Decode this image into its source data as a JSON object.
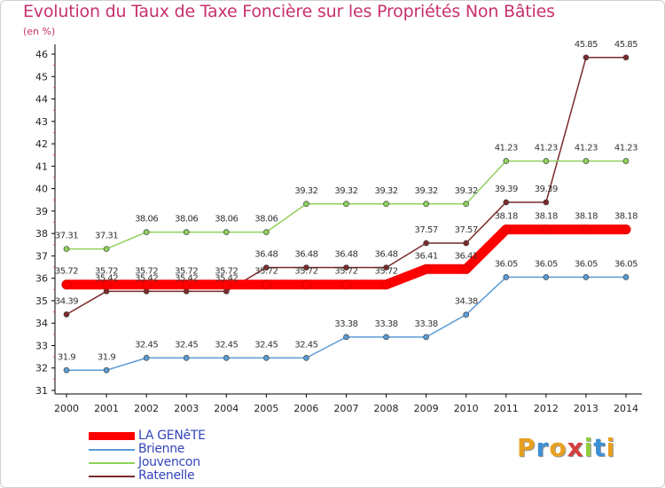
{
  "chart_data": {
    "type": "line",
    "title": "Evolution du Taux de Taxe Foncière sur les Propriétés Non Bâties",
    "unit_label": "(en %)",
    "categories": [
      "2000",
      "2001",
      "2002",
      "2003",
      "2004",
      "2005",
      "2006",
      "2007",
      "2008",
      "2009",
      "2010",
      "2011",
      "2012",
      "2013",
      "2014"
    ],
    "ylim": [
      31,
      46
    ],
    "yticks": [
      31,
      32,
      33,
      34,
      35,
      36,
      37,
      38,
      39,
      40,
      41,
      42,
      43,
      44,
      45,
      46
    ],
    "grid": false,
    "series": [
      {
        "name": "LA GENêTE",
        "color": "#ff0000",
        "values": [
          35.72,
          35.72,
          35.72,
          35.72,
          35.72,
          35.72,
          35.72,
          35.72,
          35.72,
          36.41,
          36.41,
          38.18,
          38.18,
          38.18,
          38.18
        ],
        "labels": [
          "35.72",
          "35.72",
          "35.72",
          "35.72",
          "35.72",
          "35.72",
          "35.72",
          "35.72",
          "35.72",
          "36.41",
          "36.41",
          "38.18",
          "38.18",
          "38.18",
          "38.18"
        ]
      },
      {
        "name": "Brienne",
        "color": "#5b9bd5",
        "values": [
          31.9,
          31.9,
          32.45,
          32.45,
          32.45,
          32.45,
          32.45,
          33.38,
          33.38,
          33.38,
          34.38,
          36.05,
          36.05,
          36.05,
          36.05
        ],
        "labels": [
          "31.9",
          "31.9",
          "32.45",
          "32.45",
          "32.45",
          "32.45",
          "32.45",
          "33.38",
          "33.38",
          "33.38",
          "34.38",
          "36.05",
          "36.05",
          "36.05",
          "36.05"
        ]
      },
      {
        "name": "Jouvencon",
        "color": "#8fd15b",
        "values": [
          37.31,
          37.31,
          38.06,
          38.06,
          38.06,
          38.06,
          39.32,
          39.32,
          39.32,
          39.32,
          39.32,
          41.23,
          41.23,
          41.23,
          41.23
        ],
        "labels": [
          "37.31",
          "37.31",
          "38.06",
          "38.06",
          "38.06",
          "38.06",
          "39.32",
          "39.32",
          "39.32",
          "39.32",
          "39.32",
          "41.23",
          "41.23",
          "41.23",
          "41.23"
        ]
      },
      {
        "name": "Ratenelle",
        "color": "#7a2a2a",
        "values": [
          34.39,
          35.42,
          35.42,
          35.42,
          35.42,
          36.48,
          36.48,
          36.48,
          36.48,
          37.57,
          37.57,
          39.39,
          39.39,
          45.85,
          45.85
        ],
        "labels": [
          "34.39",
          "35.42",
          "35.42",
          "35.42",
          "35.42",
          "36.48",
          "36.48",
          "36.48",
          "36.48",
          "37.57",
          "37.57",
          "39.39",
          "39.39",
          "45.85",
          "45.85"
        ]
      }
    ]
  },
  "logo": {
    "letters": [
      "P",
      "r",
      "o",
      "x",
      "i",
      "t",
      "i"
    ],
    "colors": [
      "#e8a020",
      "#3d8fd6",
      "#e8a020",
      "#d63d3d",
      "#8fcf3d",
      "#3d8fd6",
      "#e8a020"
    ]
  }
}
